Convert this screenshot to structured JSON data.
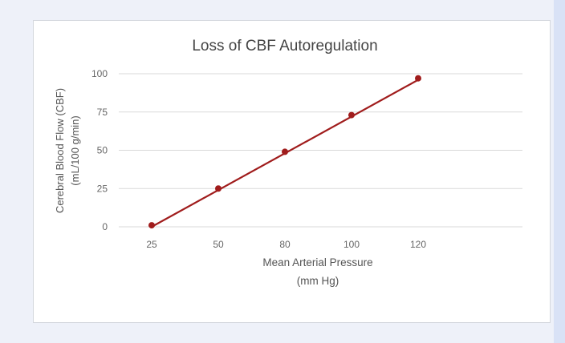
{
  "chart_data": {
    "type": "line",
    "title": "Loss of CBF Autoregulation",
    "xlabel": [
      "Mean Arterial Pressure",
      "(mm Hg)"
    ],
    "ylabel": [
      "Cerebral Blood Flow (CBF)",
      "(mL/100 g/min)"
    ],
    "categories": [
      "25",
      "50",
      "80",
      "100",
      "120"
    ],
    "x_tick_labels": [
      "25",
      "50",
      "80",
      "100",
      "120"
    ],
    "y_tick_labels": [
      "0",
      "25",
      "50",
      "75",
      "100"
    ],
    "ylim": [
      0,
      100
    ],
    "yticks": [
      0,
      25,
      50,
      75,
      100
    ],
    "grid": true,
    "legend": "none",
    "series": [
      {
        "values": [
          1,
          25,
          49,
          73,
          97
        ],
        "color": "#a01c1c"
      }
    ],
    "trendline": {
      "start": 0,
      "end": 96,
      "color": "#a01c1c"
    }
  }
}
